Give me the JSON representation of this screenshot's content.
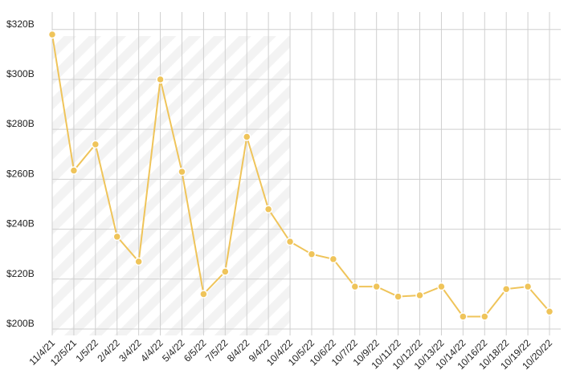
{
  "chart_data": {
    "type": "line",
    "categories": [
      "11/4/21",
      "12/5/21",
      "1/5/22",
      "2/4/22",
      "3/4/22",
      "4/4/22",
      "5/4/22",
      "6/5/22",
      "7/5/22",
      "8/4/22",
      "9/4/22",
      "10/4/22",
      "10/5/22",
      "10/6/22",
      "10/7/22",
      "10/9/22",
      "10/11/22",
      "10/12/22",
      "10/13/22",
      "10/14/22",
      "10/16/22",
      "10/18/22",
      "10/19/22",
      "10/20/22"
    ],
    "values": [
      318,
      263.5,
      274,
      237,
      227,
      300,
      263,
      214,
      223,
      277,
      248,
      235,
      230,
      228,
      217,
      217,
      213,
      213.5,
      217,
      205,
      205,
      216,
      217,
      207
    ],
    "color": "#efc45a",
    "ylim": [
      200,
      327
    ],
    "yticks": [
      {
        "value": 200,
        "label": "$200B"
      },
      {
        "value": 220,
        "label": "$220B"
      },
      {
        "value": 240,
        "label": "$240B"
      },
      {
        "value": 260,
        "label": "$260B"
      },
      {
        "value": 280,
        "label": "$280B"
      },
      {
        "value": 300,
        "label": "$300B"
      },
      {
        "value": 320,
        "label": "$320B"
      }
    ],
    "grid": true
  }
}
